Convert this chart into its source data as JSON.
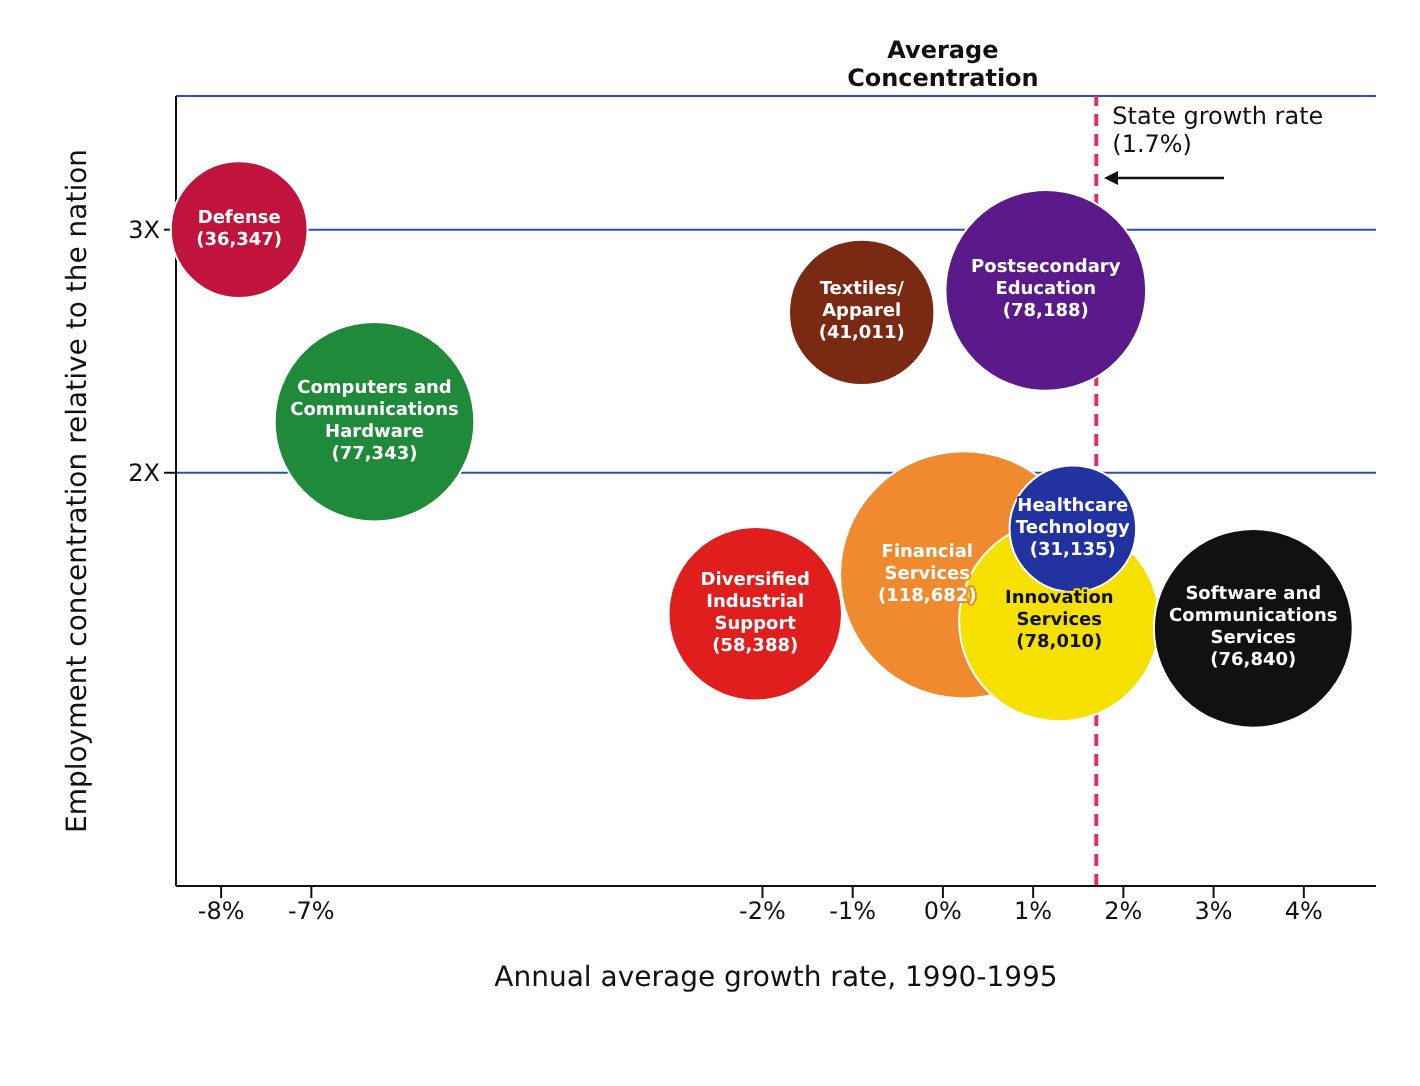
{
  "chart_data": {
    "type": "bubble",
    "xlabel": "Annual average growth rate, 1990-1995",
    "ylabel": "Employment concentration relative to the nation",
    "xlim": [
      -8.5,
      4.8
    ],
    "xticks": [
      {
        "value": -8,
        "label": "-8%"
      },
      {
        "value": -7,
        "label": "-7%"
      },
      {
        "value": -2,
        "label": "-2%"
      },
      {
        "value": -1,
        "label": "-1%"
      },
      {
        "value": 0,
        "label": "0%"
      },
      {
        "value": 1,
        "label": "1%"
      },
      {
        "value": 2,
        "label": "2%"
      },
      {
        "value": 3,
        "label": "3%"
      },
      {
        "value": 4,
        "label": "4%"
      }
    ],
    "ylim": [
      0.3,
      3.55
    ],
    "yticks": [
      {
        "value": 2,
        "label": "2X"
      },
      {
        "value": 3,
        "label": "3X"
      }
    ],
    "grid": "y",
    "legend": false,
    "series": [
      {
        "name": "Defense",
        "color": "#c0143c",
        "x": [
          -7.8
        ],
        "values": [
          3.0
        ],
        "sizes": [
          0.306
        ]
      },
      {
        "name": "Textiles/Apparel",
        "color": "#7a2a12",
        "x": [
          -0.9
        ],
        "values": [
          2.66
        ],
        "sizes": [
          0.346
        ]
      },
      {
        "name": "Postsecondary Education",
        "color": "#5a1a8a",
        "x": [
          1.14
        ],
        "values": [
          2.75
        ],
        "sizes": [
          0.659
        ]
      },
      {
        "name": "Computers and Communications Hardware",
        "color": "#1f8a3a",
        "x": [
          -6.3
        ],
        "values": [
          2.21
        ],
        "sizes": [
          0.652
        ]
      },
      {
        "name": "Diversified Industrial Support",
        "color": "#e01e1e",
        "x": [
          -2.08
        ],
        "values": [
          1.42
        ],
        "sizes": [
          0.492
        ]
      },
      {
        "name": "Financial Services",
        "color": "#ef8a2e",
        "x": [
          0.23
        ],
        "values": [
          1.58
        ],
        "sizes": [
          1
        ]
      },
      {
        "name": "Innovation Services",
        "color": "#f5e000",
        "x": [
          1.29
        ],
        "values": [
          1.39
        ],
        "sizes": [
          0.657
        ]
      },
      {
        "name": "Healthcare Technology",
        "color": "#2232a0",
        "x": [
          1.44
        ],
        "values": [
          1.77
        ],
        "sizes": [
          0.262
        ]
      },
      {
        "name": "Software and Communications Services",
        "color": "#111111",
        "x": [
          3.44
        ],
        "values": [
          1.36
        ],
        "sizes": [
          0.647
        ]
      }
    ],
    "annotations": [
      {
        "text": "(36,347)",
        "x": -7.8,
        "y": 3.0
      },
      {
        "text": "(41,011)",
        "x": -0.9,
        "y": 2.66
      },
      {
        "text": "(78,188)",
        "x": 1.14,
        "y": 2.75
      },
      {
        "text": "(77,343)",
        "x": -6.3,
        "y": 2.21
      },
      {
        "text": "(58,388)",
        "x": -2.08,
        "y": 1.42
      },
      {
        "text": "(118,682)",
        "x": 0.23,
        "y": 1.58
      },
      {
        "text": "(78,010)",
        "x": 1.29,
        "y": 1.39
      },
      {
        "text": "(31,135)",
        "x": 1.44,
        "y": 1.77
      },
      {
        "text": "(76,840)",
        "x": 3.44,
        "y": 1.36
      },
      "Average Concentration"
    ],
    "ref_lines": [
      {
        "axis": "x",
        "value": 1.7,
        "label": "State growth rate (1.7%)",
        "color": "#e0306a",
        "line_style": "dashed"
      }
    ]
  }
}
